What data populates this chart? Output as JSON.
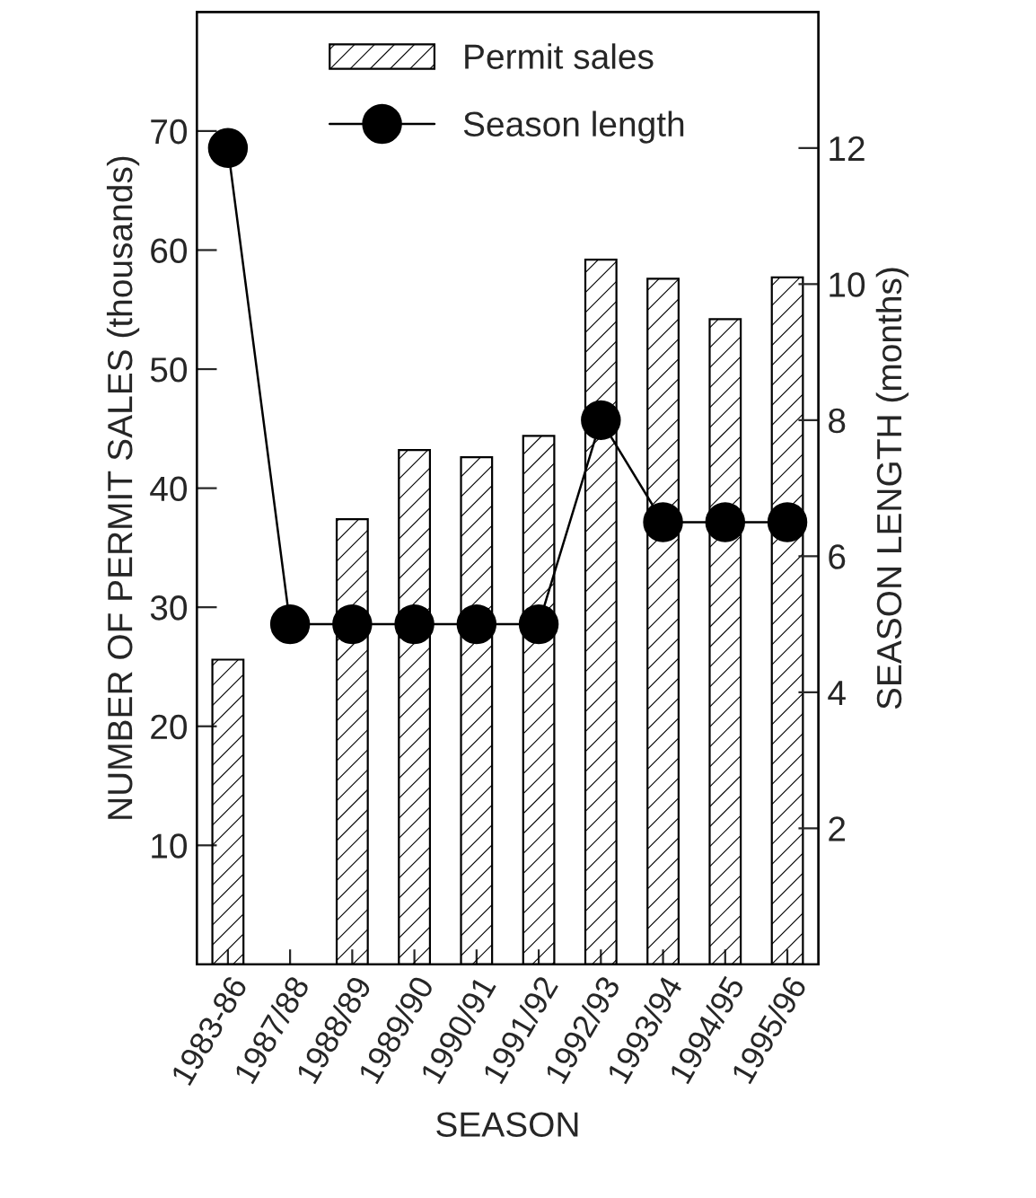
{
  "chart_data": {
    "type": "bar",
    "xlabel": "SEASON",
    "ylabel": "NUMBER OF PERMIT SALES (thousands)",
    "y2label": "SEASON LENGTH (months)",
    "categories": [
      "1983-86",
      "1987/88",
      "1988/89",
      "1989/90",
      "1990/91",
      "1991/92",
      "1992/93",
      "1993/94",
      "1994/95",
      "1995/96"
    ],
    "series": [
      {
        "name": "Permit sales",
        "color": "#000000",
        "values": [
          25.6,
          null,
          37.4,
          43.2,
          42.6,
          44.4,
          59.2,
          57.6,
          54.2,
          57.7
        ]
      },
      {
        "name": "Season length",
        "type": "line",
        "axis": "y2",
        "color": "#000000",
        "values": [
          12,
          5,
          5,
          5,
          5,
          5,
          8,
          6.5,
          6.5,
          6.5
        ]
      }
    ],
    "ylim": [
      0,
      80
    ],
    "yticks": [
      10,
      20,
      30,
      40,
      50,
      60,
      70
    ],
    "y2lim": [
      0,
      14
    ],
    "y2ticks": [
      2,
      4,
      6,
      8,
      10,
      12
    ],
    "marker": "circle",
    "line_style": "solid",
    "legend": "top",
    "grid": false
  }
}
